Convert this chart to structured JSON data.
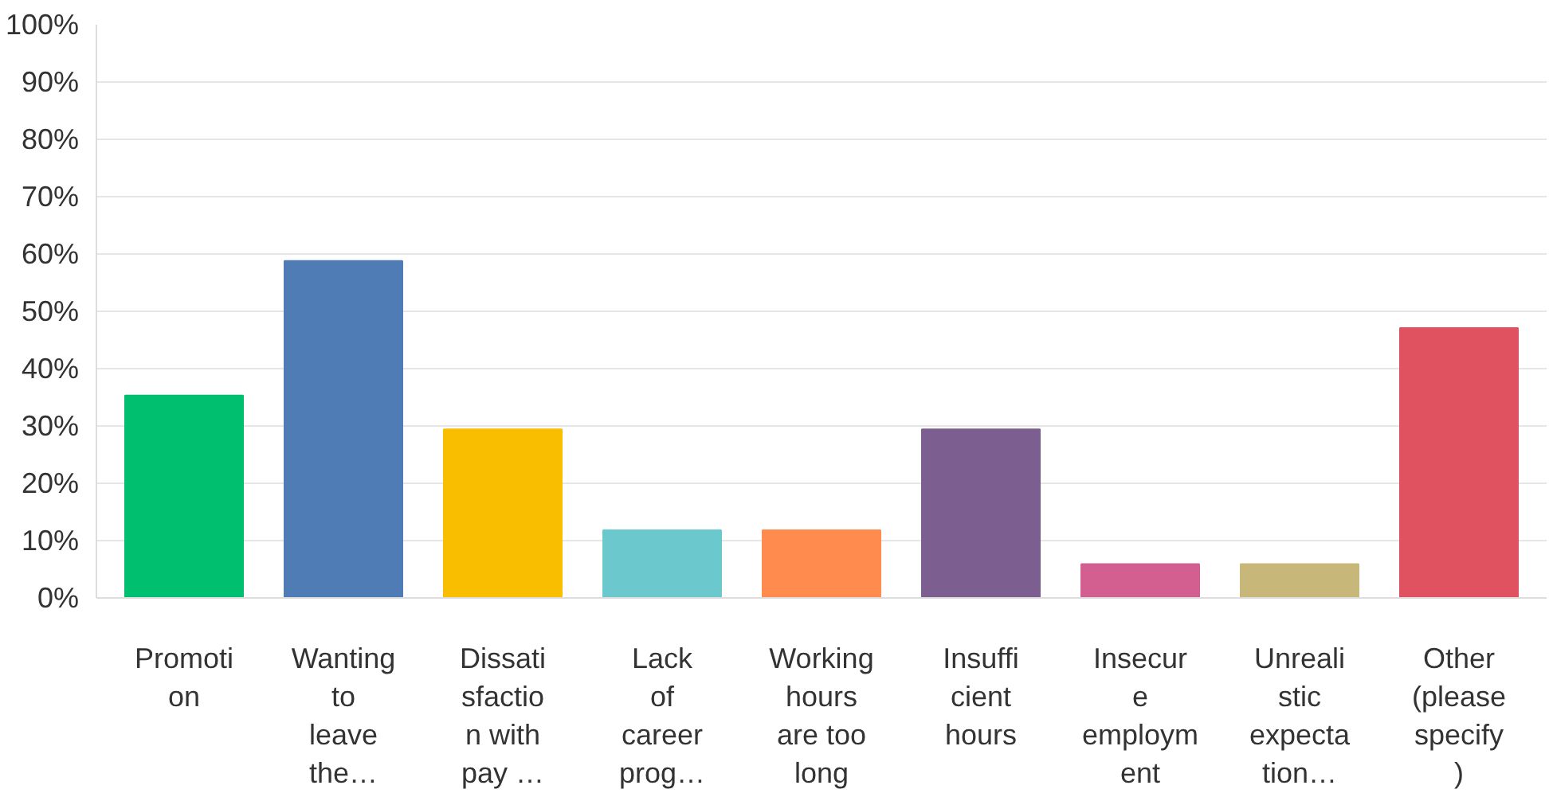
{
  "chart_data": {
    "type": "bar",
    "categories": [
      "Promoti\non",
      "Wanting\nto\nleave\nthe…",
      "Dissati\nsfactio\nn with\npay …",
      "Lack\nof\ncareer\nprog…",
      "Working\nhours\nare too\nlong",
      "Insuffi\ncient\nhours",
      "Insecur\ne\nemploym\nent",
      "Unreali\nstic\nexpecta\ntion…",
      "Other\n(please\nspecify\n)"
    ],
    "values": [
      35.3,
      58.8,
      29.4,
      11.8,
      11.8,
      29.4,
      5.9,
      5.9,
      47.1
    ],
    "colors": [
      "#00bf6f",
      "#507cb6",
      "#f9be00",
      "#6bc8cd",
      "#ff8b4f",
      "#7d5e90",
      "#d25f90",
      "#c7b879",
      "#e05260"
    ],
    "ylim": [
      0,
      100
    ],
    "yticks": [
      {
        "value": 0,
        "label": "0%"
      },
      {
        "value": 10,
        "label": "10%"
      },
      {
        "value": 20,
        "label": "20%"
      },
      {
        "value": 30,
        "label": "30%"
      },
      {
        "value": 40,
        "label": "40%"
      },
      {
        "value": 50,
        "label": "50%"
      },
      {
        "value": 60,
        "label": "60%"
      },
      {
        "value": 70,
        "label": "70%"
      },
      {
        "value": 80,
        "label": "80%"
      },
      {
        "value": 90,
        "label": "90%"
      },
      {
        "value": 100,
        "label": "100%"
      }
    ],
    "grid": "y"
  }
}
